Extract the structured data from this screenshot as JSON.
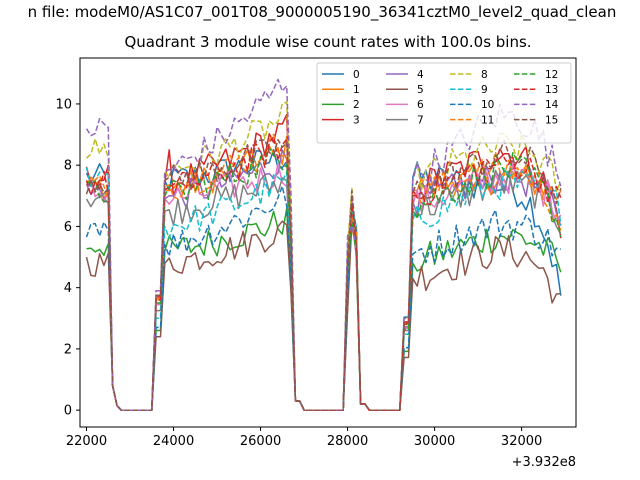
{
  "chart_data": {
    "type": "line",
    "title_top": "n file: modeM0/AS1C07_001T08_9000005190_36341cztM0_level2_quad_clean",
    "title": "Quadrant 3 module wise count rates with 100.0s bins.",
    "xlabel": "",
    "ylabel": "",
    "x_offset_label": "+3.932e8",
    "xlim": [
      21850,
      33250
    ],
    "ylim": [
      -0.55,
      11.5
    ],
    "xticks": [
      22000,
      24000,
      26000,
      28000,
      30000,
      32000
    ],
    "yticks": [
      0,
      2,
      4,
      6,
      8,
      10
    ],
    "grid": false,
    "legend": {
      "placement": "top-right",
      "columns": 4
    },
    "gaps": [
      {
        "drop": [
          22500,
          22700
        ],
        "rise": [
          23600,
          23800
        ]
      },
      {
        "drop": [
          26600,
          26900
        ],
        "rise": [
          28000,
          28050
        ]
      },
      {
        "drop": [
          28250,
          28400
        ],
        "rise": [
          29300,
          29500
        ]
      }
    ],
    "x_start": 22000,
    "x_end": 32950,
    "bin_width": 100,
    "series": [
      {
        "name": "0",
        "color": "#1f77b4",
        "style": "solid",
        "levels": [
          7.6,
          7.5,
          7.8,
          8.3,
          7.6,
          7.9,
          7.3,
          3.4
        ]
      },
      {
        "name": "1",
        "color": "#ff7f0e",
        "style": "solid",
        "levels": [
          7.3,
          7.2,
          7.9,
          8.5,
          7.2,
          8.1,
          7.6,
          6.9
        ]
      },
      {
        "name": "2",
        "color": "#2ca02c",
        "style": "solid",
        "levels": [
          5.4,
          5.2,
          5.8,
          6.2,
          4.8,
          5.3,
          5.7,
          4.5
        ]
      },
      {
        "name": "3",
        "color": "#d62728",
        "style": "solid",
        "levels": [
          7.6,
          7.4,
          8.4,
          9.2,
          7.2,
          8.2,
          8.4,
          5.8
        ]
      },
      {
        "name": "4",
        "color": "#9467bd",
        "style": "solid",
        "levels": [
          7.1,
          6.9,
          7.6,
          8.2,
          6.8,
          7.5,
          7.6,
          6.2
        ]
      },
      {
        "name": "5",
        "color": "#8c564b",
        "style": "solid",
        "levels": [
          4.8,
          4.8,
          5.4,
          5.9,
          4.3,
          4.8,
          5.2,
          3.2
        ]
      },
      {
        "name": "6",
        "color": "#e377c2",
        "style": "solid",
        "levels": [
          7.1,
          6.9,
          7.4,
          7.8,
          6.7,
          7.3,
          7.6,
          6.4
        ]
      },
      {
        "name": "7",
        "color": "#7f7f7f",
        "style": "solid",
        "levels": [
          7.0,
          6.5,
          7.1,
          7.5,
          6.5,
          7.2,
          7.4,
          6.0
        ]
      },
      {
        "name": "8",
        "color": "#bcbd22",
        "style": "dashed",
        "levels": [
          8.5,
          7.8,
          8.9,
          9.6,
          7.5,
          8.8,
          8.6,
          7.0
        ]
      },
      {
        "name": "9",
        "color": "#17becf",
        "style": "dashed",
        "levels": [
          7.7,
          6.0,
          6.8,
          7.5,
          6.2,
          7.2,
          7.4,
          6.5
        ]
      },
      {
        "name": "10",
        "color": "#1f77b4",
        "style": "dashed",
        "levels": [
          6.1,
          5.4,
          6.4,
          7.0,
          5.1,
          5.9,
          6.1,
          4.9
        ]
      },
      {
        "name": "11",
        "color": "#ff7f0e",
        "style": "dashed",
        "levels": [
          7.3,
          7.3,
          8.3,
          8.8,
          7.0,
          8.1,
          7.9,
          5.9
        ]
      },
      {
        "name": "12",
        "color": "#2ca02c",
        "style": "dashed",
        "levels": [
          7.1,
          7.0,
          7.8,
          8.4,
          6.6,
          7.7,
          7.9,
          5.7
        ]
      },
      {
        "name": "13",
        "color": "#d62728",
        "style": "dashed",
        "levels": [
          7.4,
          7.2,
          8.0,
          8.7,
          7.0,
          7.9,
          8.1,
          6.4
        ]
      },
      {
        "name": "14",
        "color": "#9467bd",
        "style": "dashed",
        "levels": [
          9.2,
          7.8,
          9.5,
          10.8,
          7.5,
          9.0,
          9.6,
          7.2
        ]
      },
      {
        "name": "15",
        "color": "#8c564b",
        "style": "dashed",
        "levels": [
          7.5,
          7.5,
          8.1,
          8.7,
          7.1,
          8.2,
          8.3,
          6.7
        ]
      }
    ]
  }
}
